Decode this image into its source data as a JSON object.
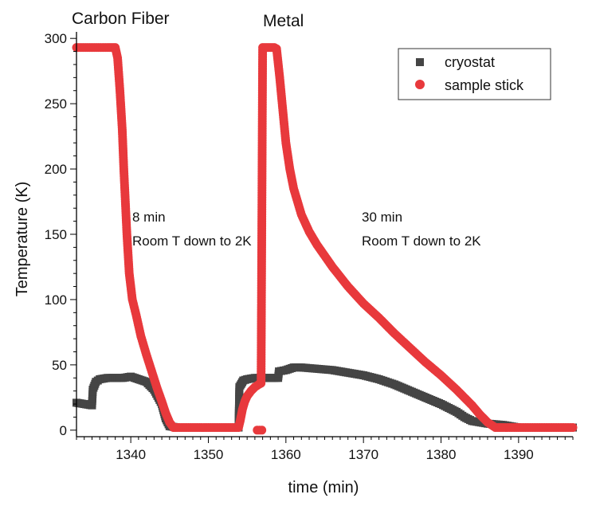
{
  "chart_data": {
    "type": "scatter",
    "xlabel": "time (min)",
    "ylabel": "Temperature (K)",
    "xlim": [
      1333,
      1397
    ],
    "ylim": [
      -5,
      305
    ],
    "xticks": [
      1340,
      1350,
      1360,
      1370,
      1380,
      1390
    ],
    "yticks": [
      0,
      50,
      100,
      150,
      200,
      250,
      300
    ],
    "grid": false,
    "legend": "top-right",
    "annotations": {
      "carbon_fiber": "Carbon Fiber",
      "metal": "Metal",
      "cf_time": "8 min",
      "cf_desc": "Room T down to 2K",
      "metal_time": "30 min",
      "metal_desc": "Room T down to 2K"
    },
    "series": [
      {
        "name": "cryostat",
        "marker": "square",
        "color": "#454545",
        "x": [
          1333,
          1334,
          1335,
          1335.1,
          1335.5,
          1336,
          1337,
          1338,
          1339,
          1340,
          1341,
          1342,
          1343,
          1344,
          1344.5,
          1345,
          1346,
          1348,
          1350,
          1352,
          1353.9,
          1354,
          1354.5,
          1355,
          1356,
          1357,
          1358,
          1359,
          1359.1,
          1360,
          1361,
          1362,
          1364,
          1366,
          1368,
          1370,
          1372,
          1374,
          1376,
          1378,
          1380,
          1382,
          1383,
          1384,
          1386,
          1388,
          1390,
          1393,
          1397
        ],
        "y": [
          21,
          20,
          19,
          31,
          37,
          39,
          40,
          40,
          40,
          41,
          39,
          37,
          31,
          20,
          9,
          3,
          2,
          2,
          2,
          2,
          2,
          33,
          38,
          39,
          40,
          40,
          40,
          40,
          45,
          46,
          48,
          48,
          47,
          46,
          44,
          42,
          39,
          35,
          30,
          25,
          20,
          14,
          10,
          7,
          5,
          4,
          2,
          2,
          2
        ]
      },
      {
        "name": "sample stick",
        "marker": "circle",
        "color": "#e8393c",
        "x": [
          1333,
          1335,
          1337,
          1338,
          1338.3,
          1338.6,
          1338.9,
          1339.1,
          1339.3,
          1339.5,
          1339.8,
          1340.2,
          1340.7,
          1341.3,
          1342,
          1342.7,
          1343.4,
          1344,
          1344.5,
          1345,
          1345.5,
          1346,
          1348,
          1350,
          1352,
          1353.9,
          1354.1,
          1354.4,
          1354.7,
          1355,
          1355.5,
          1356,
          1356.5,
          1356.8,
          1357,
          1357.5,
          1358,
          1358.5,
          1358.8,
          1359.2,
          1359.6,
          1360,
          1360.5,
          1361,
          1362,
          1363,
          1364,
          1366,
          1368,
          1370,
          1372,
          1374,
          1376,
          1378,
          1380,
          1382,
          1384,
          1385,
          1386,
          1386.5,
          1387,
          1387.5,
          1388,
          1390,
          1393,
          1397
        ],
        "y": [
          293,
          293,
          293,
          293,
          285,
          260,
          230,
          200,
          175,
          150,
          120,
          100,
          88,
          72,
          58,
          45,
          32,
          22,
          13,
          6,
          2,
          2,
          2,
          2,
          2,
          2,
          7,
          16,
          22,
          26,
          30,
          33,
          35,
          36,
          293,
          293,
          293,
          293,
          292,
          270,
          245,
          220,
          200,
          185,
          165,
          152,
          142,
          125,
          110,
          97,
          86,
          74,
          63,
          52,
          42,
          31,
          19,
          12,
          6,
          4,
          2,
          2,
          2,
          2,
          2,
          2
        ]
      }
    ],
    "outliers": {
      "series": "sample stick",
      "x": [
        1356.3,
        1356.6,
        1356.9
      ],
      "y": [
        0,
        0,
        0
      ]
    }
  }
}
